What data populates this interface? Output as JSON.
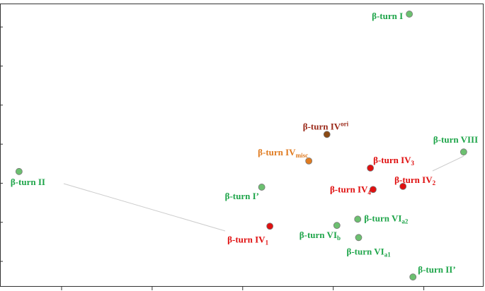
{
  "chart_data": {
    "type": "scatter",
    "xlim": [
      0.32,
      5.66
    ],
    "ylim": [
      0.35,
      7.6
    ],
    "xticks": [
      1,
      2,
      3,
      4,
      5
    ],
    "yticks": [
      1,
      2,
      3,
      4,
      5,
      6,
      7
    ],
    "points": [
      {
        "label": {
          "text": "β-turn I"
        },
        "x": 4.84,
        "y": 7.33,
        "color": "#6cc070",
        "label_color": "#1fa54a"
      },
      {
        "label": {
          "text": "β-turn II"
        },
        "x": 0.53,
        "y": 3.3,
        "color": "#6cc070",
        "label_color": "#1fa54a"
      },
      {
        "label": {
          "text": "β-turn I’"
        },
        "x": 3.21,
        "y": 2.9,
        "color": "#6cc070",
        "label_color": "#1fa54a"
      },
      {
        "label": {
          "text": "β-turn IV",
          "sup": "ori"
        },
        "x": 3.93,
        "y": 4.25,
        "color": "#8b4a14",
        "label_color": "#9b2a1a"
      },
      {
        "label": {
          "text": "β-turn IV",
          "sub": "misc"
        },
        "x": 3.73,
        "y": 3.57,
        "color": "#e07b20",
        "label_color": "#e07b20"
      },
      {
        "label": {
          "text": "β-turn IV",
          "sub": "3"
        },
        "x": 4.41,
        "y": 3.39,
        "color": "#e01010",
        "label_color": "#e01010"
      },
      {
        "label": {
          "text": "β-turn IV",
          "sub": "4"
        },
        "x": 4.44,
        "y": 2.84,
        "color": "#e01010",
        "label_color": "#e01010"
      },
      {
        "label": {
          "text": "β-turn IV",
          "sub": "2"
        },
        "x": 4.77,
        "y": 2.92,
        "color": "#e01010",
        "label_color": "#e01010"
      },
      {
        "label": {
          "text": "β-turn VIII"
        },
        "x": 5.44,
        "y": 3.8,
        "color": "#6cc070",
        "label_color": "#1fa54a"
      },
      {
        "label": {
          "text": "β-turn IV",
          "sub": "1"
        },
        "x": 3.3,
        "y": 1.9,
        "color": "#e01010",
        "label_color": "#e01010"
      },
      {
        "label": {
          "text": "β-turn VI",
          "sub": "b"
        },
        "x": 4.04,
        "y": 1.92,
        "color": "#6cc070",
        "label_color": "#1fa54a"
      },
      {
        "label": {
          "text": "β-turn VI",
          "sub": "a2"
        },
        "x": 4.27,
        "y": 2.08,
        "color": "#6cc070",
        "label_color": "#1fa54a"
      },
      {
        "label": {
          "text": "β-turn VI",
          "sub": "a1"
        },
        "x": 4.28,
        "y": 1.61,
        "color": "#6cc070",
        "label_color": "#1fa54a"
      },
      {
        "label": {
          "text": "β-turn II’"
        },
        "x": 4.88,
        "y": 0.6,
        "color": "#6cc070",
        "label_color": "#1fa54a"
      }
    ]
  }
}
